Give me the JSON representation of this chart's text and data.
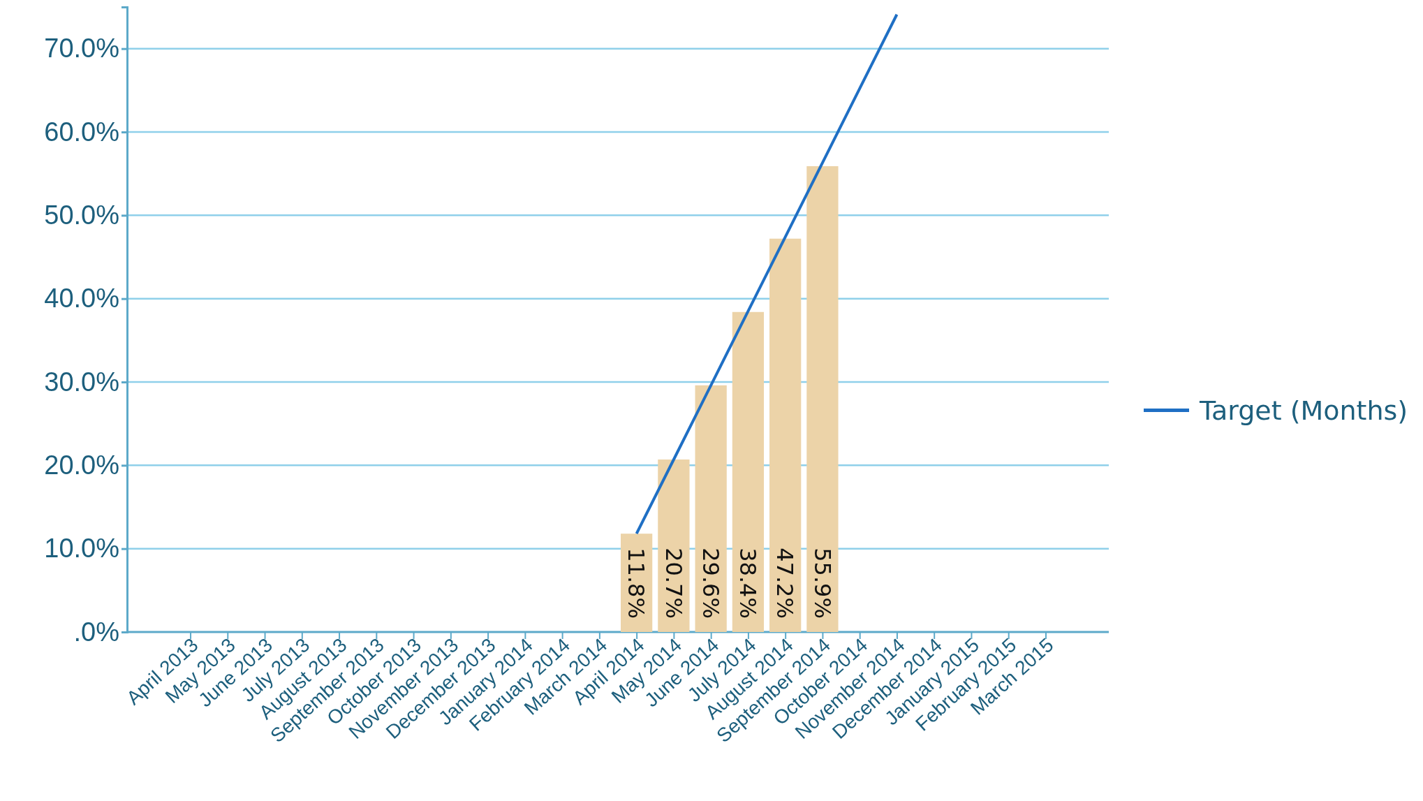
{
  "chart_data": {
    "type": "bar",
    "categories": [
      "April 2013",
      "May 2013",
      "June 2013",
      "July 2013",
      "August 2013",
      "September 2013",
      "October 2013",
      "November 2013",
      "December 2013",
      "January 2014",
      "February 2014",
      "March 2014",
      "April 2014",
      "May 2014",
      "June 2014",
      "July 2014",
      "August 2014",
      "September 2014",
      "October 2014",
      "November 2014",
      "December 2014",
      "January 2015",
      "February 2015",
      "March 2015"
    ],
    "series": [
      {
        "color": "#ecd3a8",
        "values": [
          null,
          null,
          null,
          null,
          null,
          null,
          null,
          null,
          null,
          null,
          null,
          null,
          11.8,
          20.7,
          29.6,
          38.4,
          47.2,
          55.9,
          null,
          null,
          null,
          null,
          null,
          null
        ],
        "value_labels": [
          null,
          null,
          null,
          null,
          null,
          null,
          null,
          null,
          null,
          null,
          null,
          null,
          "11.8%",
          "20.7%",
          "29.6%",
          "38.4%",
          "47.2%",
          "55.9%",
          null,
          null,
          null,
          null,
          null,
          null
        ]
      },
      {
        "type": "line",
        "name": "Target (Months)",
        "color": "#1f6fc4",
        "values": [
          null,
          null,
          null,
          null,
          null,
          null,
          null,
          null,
          null,
          null,
          null,
          null,
          11.8,
          20.7,
          29.6,
          38.5,
          47.4,
          56.3,
          65.2,
          74.1,
          null,
          null,
          null,
          null
        ]
      }
    ],
    "ylim": [
      0,
      75
    ],
    "yticks": [
      {
        "value": 0,
        "label": ".0%"
      },
      {
        "value": 10,
        "label": "10.0%"
      },
      {
        "value": 20,
        "label": "20.0%"
      },
      {
        "value": 30,
        "label": "30.0%"
      },
      {
        "value": 40,
        "label": "40.0%"
      },
      {
        "value": 50,
        "label": "50.0%"
      },
      {
        "value": 60,
        "label": "60.0%"
      },
      {
        "value": 70,
        "label": "70.0%"
      }
    ],
    "grid": "y",
    "legend": "right",
    "line_style": "solid",
    "marker": "none"
  }
}
